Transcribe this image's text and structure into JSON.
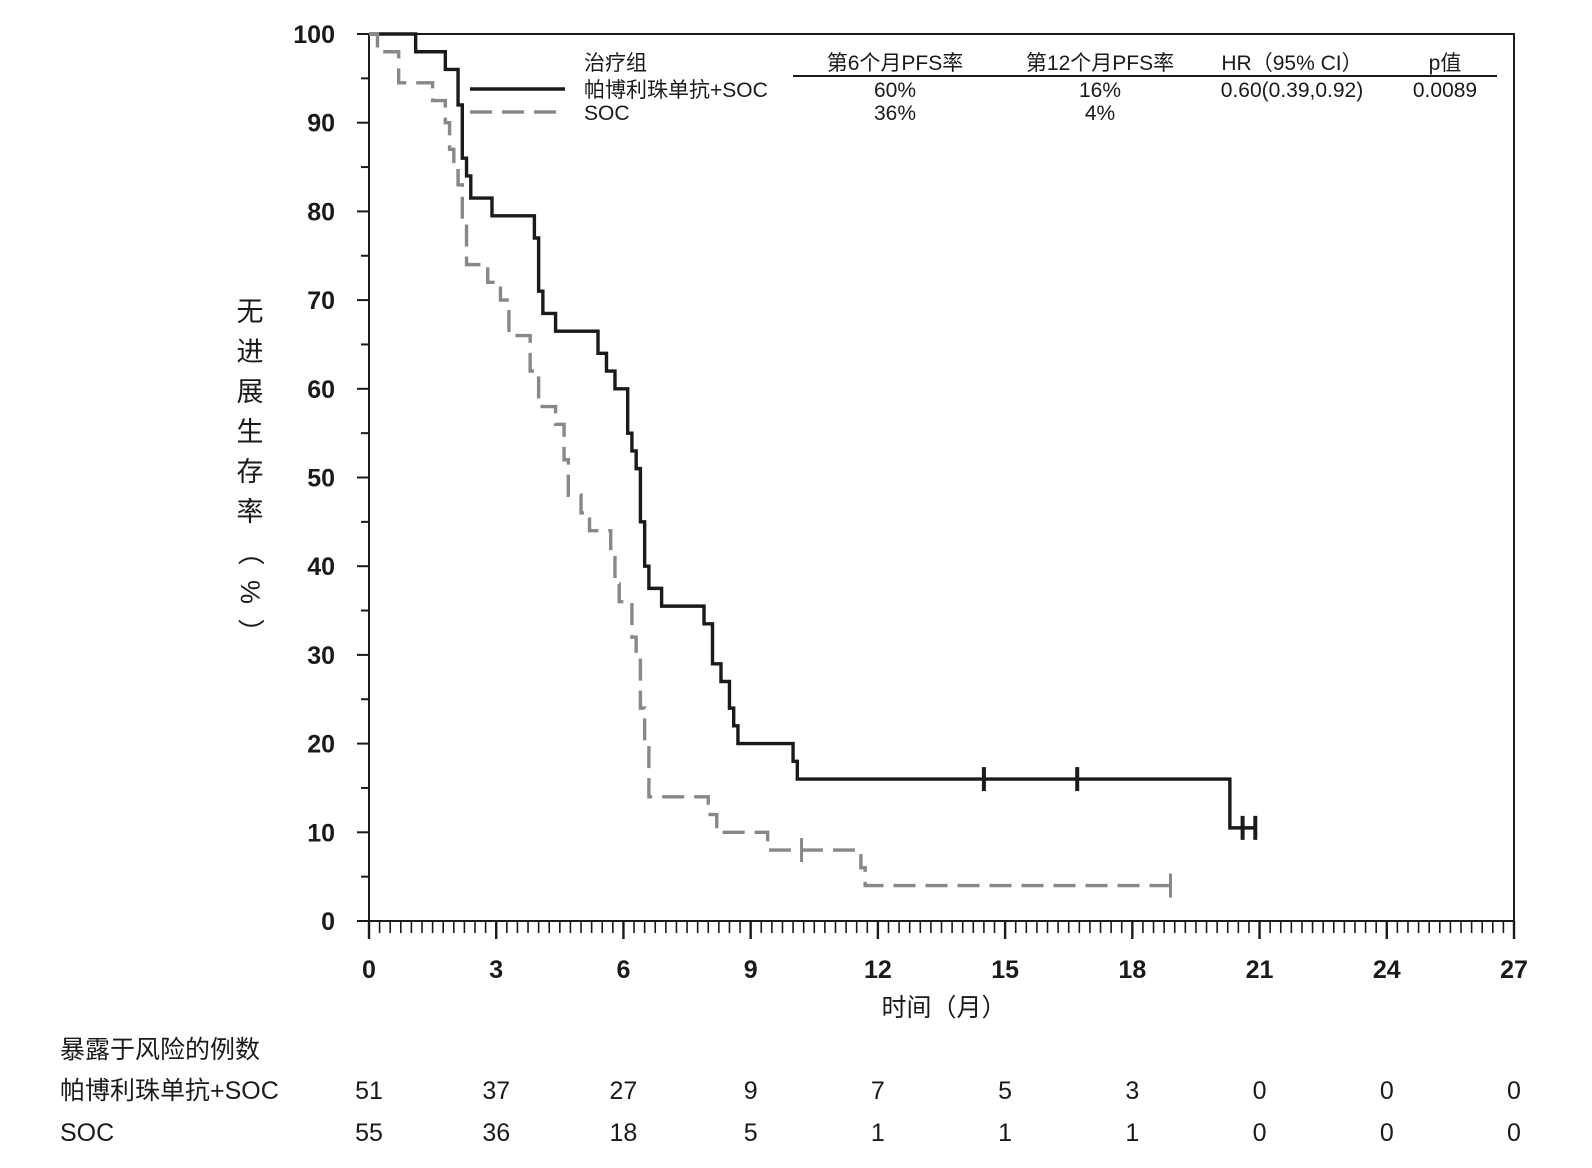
{
  "chart_data": {
    "type": "line",
    "subtype": "kaplan-meier step",
    "xlabel": "时间（月）",
    "ylabel": "无进展生存率（%）",
    "xlim": [
      0,
      27
    ],
    "ylim": [
      0,
      100
    ],
    "x_ticks": [
      "0",
      "3",
      "6",
      "9",
      "12",
      "15",
      "18",
      "21",
      "24",
      "27"
    ],
    "y_ticks": [
      "0",
      "10",
      "20",
      "30",
      "40",
      "50",
      "60",
      "70",
      "80",
      "90",
      "100"
    ],
    "grid": false,
    "legend_position": "top-right",
    "legend_header": [
      "治疗组",
      "第6个月PFS率",
      "第12个月PFS率",
      "HR（95% CI）",
      "p值"
    ],
    "series": [
      {
        "name": "帕博利珠单抗+SOC",
        "color": "#1a1a1a",
        "line_style": "solid",
        "pfs6": "60%",
        "pfs12": "16%",
        "hr": "0.60(0.39,0.92)",
        "p": "0.0089",
        "steps": [
          [
            0,
            100
          ],
          [
            1.1,
            98
          ],
          [
            1.8,
            96
          ],
          [
            2.1,
            92
          ],
          [
            2.2,
            86
          ],
          [
            2.3,
            84
          ],
          [
            2.4,
            81.5
          ],
          [
            2.9,
            79.5
          ],
          [
            3.9,
            77
          ],
          [
            4.0,
            71
          ],
          [
            4.1,
            68.5
          ],
          [
            4.4,
            66.5
          ],
          [
            5.4,
            64
          ],
          [
            5.6,
            62
          ],
          [
            5.8,
            60
          ],
          [
            6.1,
            55
          ],
          [
            6.2,
            53
          ],
          [
            6.3,
            51
          ],
          [
            6.4,
            45
          ],
          [
            6.5,
            40
          ],
          [
            6.6,
            37.5
          ],
          [
            6.9,
            35.5
          ],
          [
            7.9,
            33.5
          ],
          [
            8.1,
            29
          ],
          [
            8.3,
            27
          ],
          [
            8.5,
            24
          ],
          [
            8.6,
            22
          ],
          [
            8.7,
            20
          ],
          [
            10.0,
            18
          ],
          [
            10.1,
            16
          ],
          [
            20.3,
            10.5
          ]
        ],
        "end_x": 20.9,
        "censored": [
          14.5,
          16.7,
          20.6,
          20.9
        ]
      },
      {
        "name": "SOC",
        "color": "#888888",
        "line_style": "dashed",
        "pfs6": "36%",
        "pfs12": "4%",
        "hr": "",
        "p": "",
        "steps": [
          [
            0,
            100
          ],
          [
            0.2,
            98
          ],
          [
            0.7,
            94.5
          ],
          [
            1.5,
            92.5
          ],
          [
            1.8,
            90
          ],
          [
            1.9,
            87
          ],
          [
            2.0,
            85
          ],
          [
            2.1,
            83
          ],
          [
            2.2,
            79
          ],
          [
            2.3,
            74
          ],
          [
            2.8,
            72
          ],
          [
            3.1,
            70
          ],
          [
            3.3,
            66
          ],
          [
            3.8,
            62
          ],
          [
            4.0,
            58
          ],
          [
            4.4,
            56
          ],
          [
            4.6,
            52
          ],
          [
            4.7,
            48
          ],
          [
            5.0,
            46
          ],
          [
            5.2,
            44
          ],
          [
            5.7,
            42
          ],
          [
            5.8,
            38
          ],
          [
            5.9,
            36
          ],
          [
            6.2,
            32
          ],
          [
            6.3,
            30
          ],
          [
            6.4,
            24
          ],
          [
            6.5,
            20
          ],
          [
            6.6,
            14
          ],
          [
            8.0,
            12
          ],
          [
            8.2,
            10
          ],
          [
            9.4,
            8
          ],
          [
            11.6,
            6
          ],
          [
            11.7,
            4
          ]
        ],
        "end_x": 18.9,
        "censored": [
          10.2,
          18.9
        ]
      }
    ],
    "risk_table": {
      "title": "暴露于风险的例数",
      "columns": [
        "0",
        "3",
        "6",
        "9",
        "12",
        "15",
        "18",
        "21",
        "24",
        "27"
      ],
      "rows": [
        {
          "label": "帕博利珠单抗+SOC",
          "values": [
            "51",
            "37",
            "27",
            "9",
            "7",
            "5",
            "3",
            "0",
            "0",
            "0"
          ]
        },
        {
          "label": "SOC",
          "values": [
            "55",
            "36",
            "18",
            "5",
            "1",
            "1",
            "1",
            "0",
            "0",
            "0"
          ]
        }
      ]
    }
  }
}
